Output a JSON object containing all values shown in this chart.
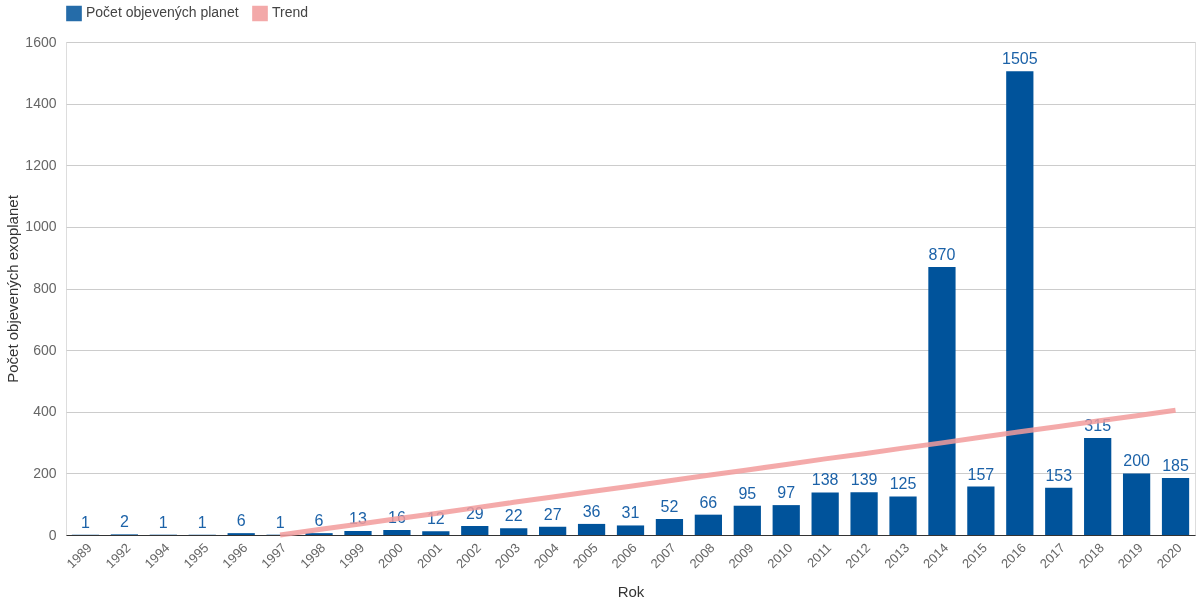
{
  "chart_data": {
    "type": "bar",
    "xlabel": "Rok",
    "ylabel": "Počet objevených exoplanet",
    "categories": [
      "1989",
      "1992",
      "1994",
      "1995",
      "1996",
      "1997",
      "1998",
      "1999",
      "2000",
      "2001",
      "2002",
      "2003",
      "2004",
      "2005",
      "2006",
      "2007",
      "2008",
      "2009",
      "2010",
      "2011",
      "2012",
      "2013",
      "2014",
      "2015",
      "2016",
      "2017",
      "2018",
      "2019",
      "2020"
    ],
    "series": [
      {
        "name": "Počet objevených planet",
        "color": "#00539b",
        "values": [
          1,
          2,
          1,
          1,
          6,
          1,
          6,
          13,
          16,
          12,
          29,
          22,
          27,
          36,
          31,
          52,
          66,
          95,
          97,
          138,
          139,
          125,
          870,
          157,
          1505,
          153,
          315,
          200,
          185
        ],
        "value_labels": [
          "1",
          "2",
          "1",
          "1",
          "6",
          "1",
          "6",
          "13",
          "16",
          "12",
          "29",
          "22",
          "27",
          "36",
          "31",
          "52",
          "66",
          "95",
          "97",
          "138",
          "139",
          "125",
          "870",
          "157",
          "1505",
          "153",
          "315",
          "200",
          "185"
        ]
      },
      {
        "name": "Trend",
        "type": "line",
        "color": "#f29b9b",
        "values": [
          null,
          null,
          null,
          null,
          null,
          0,
          18,
          35,
          53,
          70,
          88,
          106,
          123,
          141,
          158,
          176,
          194,
          211,
          229,
          247,
          264,
          282,
          299,
          317,
          335,
          352,
          370,
          387,
          405
        ]
      }
    ],
    "ylim": [
      0,
      1600
    ],
    "yticks": [
      0,
      200,
      400,
      600,
      800,
      1000,
      1200,
      1400,
      1600
    ],
    "grid": "y",
    "legend": "top"
  }
}
